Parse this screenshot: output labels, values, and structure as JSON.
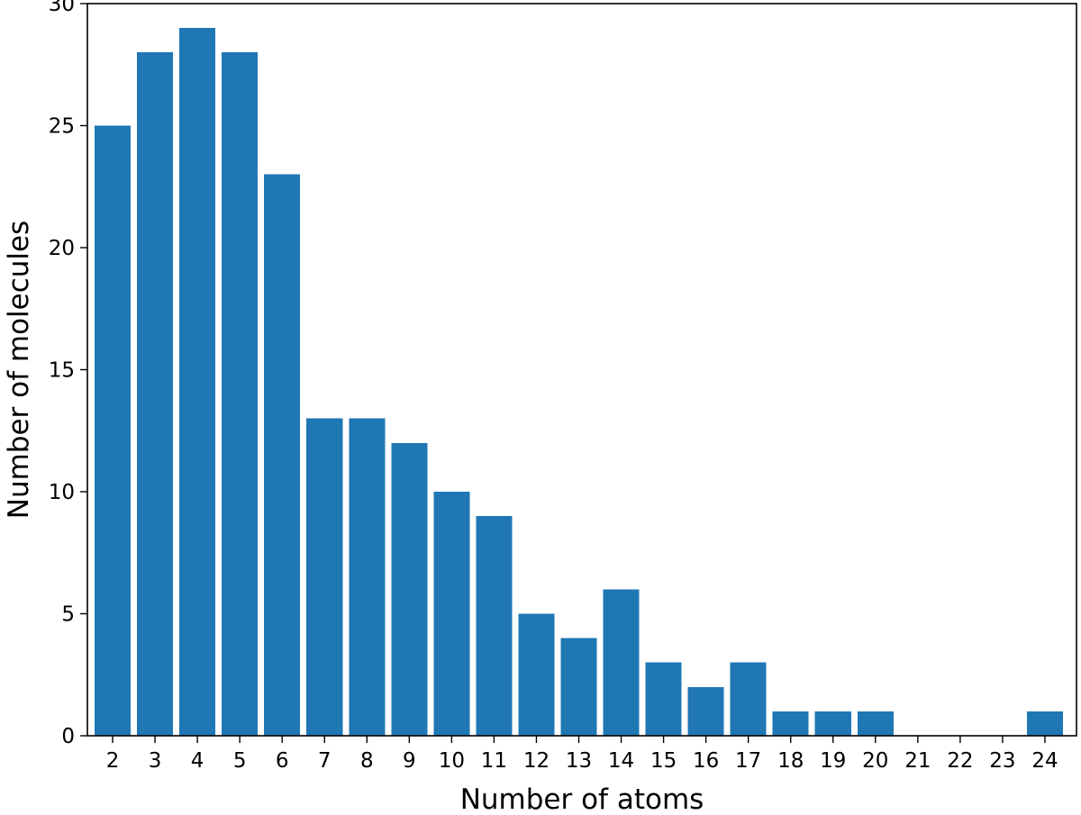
{
  "chart_data": {
    "type": "bar",
    "title": "",
    "xlabel": "Number of atoms",
    "ylabel": "Number of molecules",
    "categories": [
      "2",
      "3",
      "4",
      "5",
      "6",
      "7",
      "8",
      "9",
      "10",
      "11",
      "12",
      "13",
      "14",
      "15",
      "16",
      "17",
      "18",
      "19",
      "20",
      "21",
      "22",
      "23",
      "24"
    ],
    "values": [
      25,
      28,
      29,
      28,
      23,
      13,
      13,
      12,
      10,
      9,
      5,
      4,
      6,
      3,
      2,
      3,
      1,
      1,
      1,
      0,
      0,
      0,
      1
    ],
    "ylim": [
      0,
      30
    ],
    "yticks": [
      0,
      5,
      10,
      15,
      20,
      25,
      30
    ],
    "grid": false,
    "legend": "none",
    "bar_color": "#1f77b4"
  }
}
